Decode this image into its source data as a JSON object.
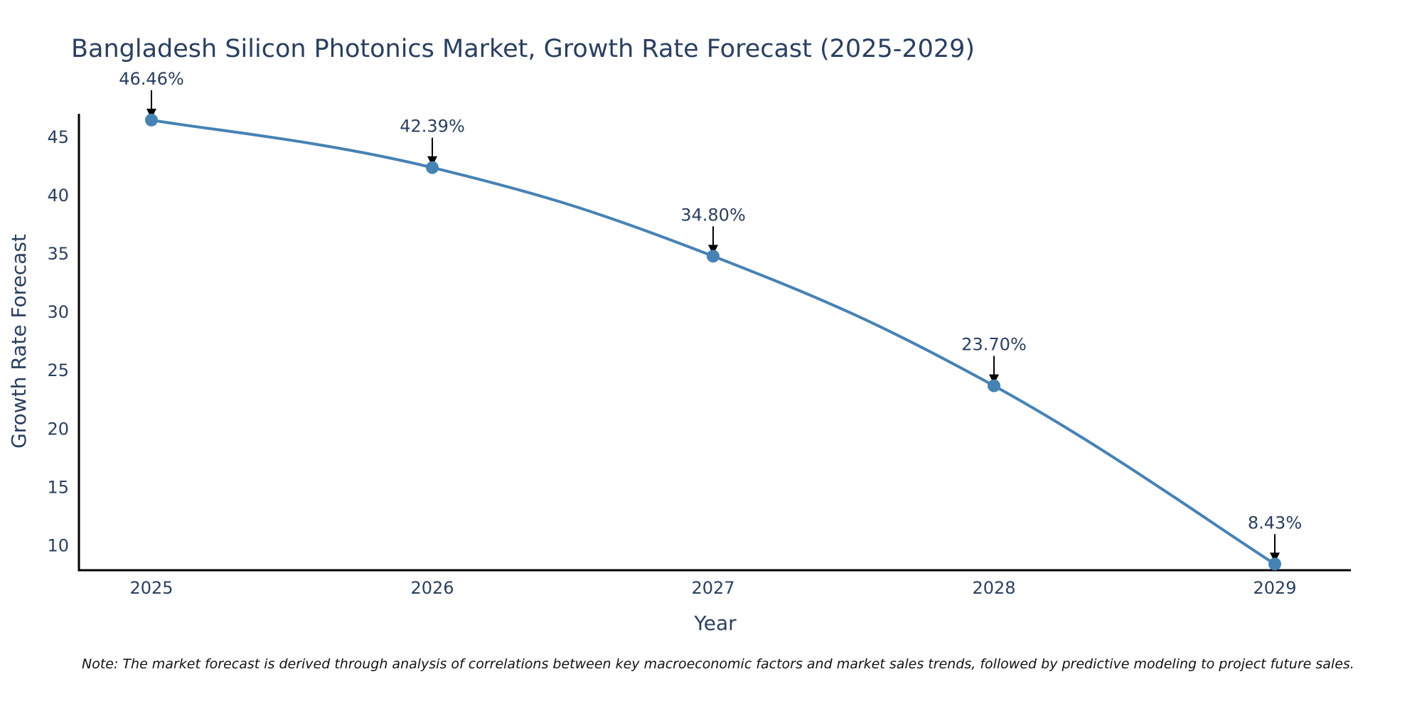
{
  "chart_data": {
    "type": "line",
    "title": "Bangladesh Silicon Photonics Market, Growth Rate Forecast (2025-2029)",
    "xlabel": "Year",
    "ylabel": "Growth Rate Forecast",
    "categories": [
      "2025",
      "2026",
      "2027",
      "2028",
      "2029"
    ],
    "series": [
      {
        "name": "Growth Rate Forecast",
        "values": [
          46.46,
          42.39,
          34.8,
          23.7,
          8.43
        ],
        "labels": [
          "46.46%",
          "42.39%",
          "34.80%",
          "23.70%",
          "8.43%"
        ]
      }
    ],
    "y_ticks": [
      10,
      15,
      20,
      25,
      30,
      35,
      40,
      45
    ],
    "ylim": [
      7.9,
      47
    ],
    "grid": false,
    "line_color": "#4682b4",
    "note": "Note: The market forecast is derived through analysis of correlations between key macroeconomic factors and market sales trends, followed by predictive modeling to project future sales."
  }
}
